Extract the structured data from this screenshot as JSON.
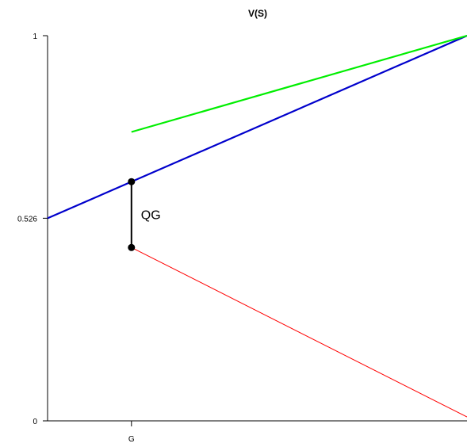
{
  "chart_data": {
    "type": "line",
    "title": "V(S)",
    "xlabel": "",
    "ylabel": "",
    "xlim": [
      0,
      1
    ],
    "ylim": [
      0,
      1
    ],
    "x_ticks": [
      {
        "value": 0.2,
        "label": "G"
      }
    ],
    "y_ticks": [
      {
        "value": 0,
        "label": "0"
      },
      {
        "value": 0.526,
        "label": "0.526"
      },
      {
        "value": 1,
        "label": "1"
      }
    ],
    "grid": false,
    "legend": "none",
    "series": [
      {
        "color": "#0000cc",
        "points": [
          [
            0,
            0.526
          ],
          [
            1,
            1
          ]
        ]
      },
      {
        "color": "#00ee00",
        "points": [
          [
            0.2,
            0.75
          ],
          [
            1,
            1
          ]
        ]
      },
      {
        "color": "#ff0000",
        "points": [
          [
            0.2,
            0.45
          ],
          [
            1,
            0.01
          ]
        ]
      }
    ],
    "markers": [
      [
        0.2,
        0.621
      ],
      [
        0.2,
        0.45
      ]
    ],
    "annotations": [
      {
        "text": "QG",
        "x": 0.2,
        "y_from": 0.45,
        "y_to": 0.621
      }
    ]
  }
}
